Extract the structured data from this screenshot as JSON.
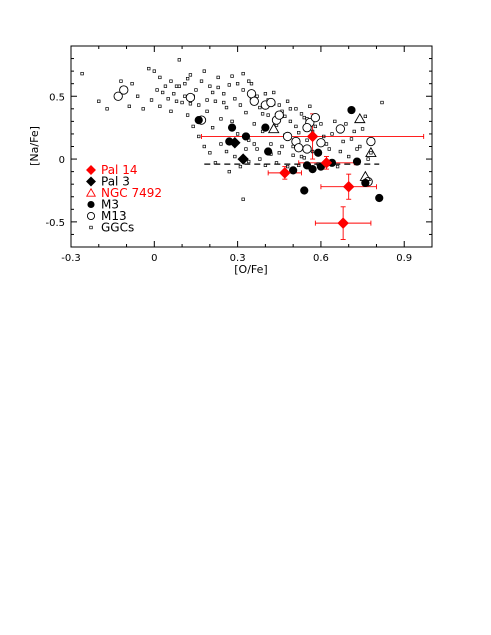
{
  "chart_data": {
    "type": "scatter",
    "xlabel": "[O/Fe]",
    "ylabel": "[Na/Fe]",
    "xlim": [
      -0.3,
      1.0
    ],
    "ylim": [
      -0.7,
      0.9
    ],
    "x_ticks": [
      "-0.3",
      "0",
      "0.3",
      "0.6",
      "0.9"
    ],
    "y_ticks": [
      "-0.5",
      "0",
      "0.5"
    ],
    "legend": [
      {
        "label": "Pal 14",
        "color": "#ff0000"
      },
      {
        "label": "Pal 3",
        "color": "#000000"
      },
      {
        "label": "NGC 7492",
        "color": "#ff0000"
      },
      {
        "label": "M3",
        "color": "#000000"
      },
      {
        "label": "M13",
        "color": "#000000"
      },
      {
        "label": "GGCs",
        "color": "#000000"
      }
    ],
    "legend_position": "left",
    "series": [
      {
        "name": "Pal 14",
        "marker": "diamond-filled",
        "color": "#ff0000",
        "points": [
          {
            "x": 0.57,
            "y": 0.18,
            "xerr": 0.4,
            "yerr": 0.18
          },
          {
            "x": 0.62,
            "y": -0.03,
            "xerr": 0.1,
            "yerr": 0.05
          },
          {
            "x": 0.47,
            "y": -0.11,
            "xerr": 0.06,
            "yerr": 0.05
          },
          {
            "x": 0.7,
            "y": -0.22,
            "xerr": 0.1,
            "yerr": 0.1
          },
          {
            "x": 0.68,
            "y": -0.51,
            "xerr": 0.1,
            "yerr": 0.13
          }
        ]
      },
      {
        "name": "Pal 3",
        "marker": "diamond-filled",
        "color": "#000000",
        "points": [
          {
            "x": 0.29,
            "y": 0.13
          },
          {
            "x": 0.32,
            "y": 0.0
          }
        ]
      },
      {
        "name": "NGC 7492",
        "marker": "triangle-open",
        "color": "#ff0000",
        "points": []
      },
      {
        "name": "NGC 7492 (field)",
        "marker": "triangle-open",
        "color": "#000000",
        "points": [
          {
            "x": 0.43,
            "y": 0.24
          },
          {
            "x": 0.76,
            "y": -0.14
          },
          {
            "x": 0.74,
            "y": 0.32
          },
          {
            "x": 0.78,
            "y": 0.05
          }
        ]
      },
      {
        "name": "M3",
        "marker": "circle-filled",
        "color": "#000000",
        "points": [
          {
            "x": 0.16,
            "y": 0.31
          },
          {
            "x": 0.28,
            "y": 0.25
          },
          {
            "x": 0.27,
            "y": 0.14
          },
          {
            "x": 0.33,
            "y": 0.18
          },
          {
            "x": 0.41,
            "y": 0.06
          },
          {
            "x": 0.4,
            "y": 0.25
          },
          {
            "x": 0.5,
            "y": -0.09
          },
          {
            "x": 0.55,
            "y": -0.05
          },
          {
            "x": 0.57,
            "y": -0.08
          },
          {
            "x": 0.59,
            "y": 0.05
          },
          {
            "x": 0.64,
            "y": -0.03
          },
          {
            "x": 0.71,
            "y": 0.39
          },
          {
            "x": 0.73,
            "y": -0.02
          },
          {
            "x": 0.76,
            "y": -0.19
          },
          {
            "x": 0.81,
            "y": -0.31
          },
          {
            "x": 0.54,
            "y": -0.25
          },
          {
            "x": 0.6,
            "y": -0.06
          }
        ]
      },
      {
        "name": "M13",
        "marker": "circle-open",
        "color": "#000000",
        "points": [
          {
            "x": -0.13,
            "y": 0.5
          },
          {
            "x": -0.11,
            "y": 0.55
          },
          {
            "x": 0.13,
            "y": 0.49
          },
          {
            "x": 0.17,
            "y": 0.31
          },
          {
            "x": 0.35,
            "y": 0.52
          },
          {
            "x": 0.36,
            "y": 0.46
          },
          {
            "x": 0.4,
            "y": 0.43
          },
          {
            "x": 0.42,
            "y": 0.45
          },
          {
            "x": 0.44,
            "y": 0.31
          },
          {
            "x": 0.45,
            "y": 0.35
          },
          {
            "x": 0.48,
            "y": 0.18
          },
          {
            "x": 0.51,
            "y": 0.14
          },
          {
            "x": 0.52,
            "y": 0.09
          },
          {
            "x": 0.55,
            "y": 0.08
          },
          {
            "x": 0.56,
            "y": 0.29
          },
          {
            "x": 0.58,
            "y": 0.33
          },
          {
            "x": 0.6,
            "y": 0.13
          },
          {
            "x": 0.67,
            "y": 0.24
          },
          {
            "x": 0.78,
            "y": 0.14
          },
          {
            "x": 0.77,
            "y": -0.18
          },
          {
            "x": 0.55,
            "y": 0.25
          }
        ]
      },
      {
        "name": "GGCs",
        "marker": "dot",
        "color": "#000000",
        "points": [
          {
            "x": -0.26,
            "y": 0.68
          },
          {
            "x": -0.2,
            "y": 0.46
          },
          {
            "x": -0.17,
            "y": 0.4
          },
          {
            "x": -0.12,
            "y": 0.62
          },
          {
            "x": -0.09,
            "y": 0.42
          },
          {
            "x": -0.06,
            "y": 0.5
          },
          {
            "x": -0.04,
            "y": 0.4
          },
          {
            "x": -0.02,
            "y": 0.72
          },
          {
            "x": 0.0,
            "y": 0.7
          },
          {
            "x": 0.02,
            "y": 0.65
          },
          {
            "x": 0.03,
            "y": 0.53
          },
          {
            "x": 0.05,
            "y": 0.48
          },
          {
            "x": 0.06,
            "y": 0.38
          },
          {
            "x": 0.08,
            "y": 0.58
          },
          {
            "x": 0.09,
            "y": 0.79
          },
          {
            "x": 0.1,
            "y": 0.45
          },
          {
            "x": 0.11,
            "y": 0.6
          },
          {
            "x": 0.12,
            "y": 0.35
          },
          {
            "x": 0.13,
            "y": 0.67
          },
          {
            "x": 0.14,
            "y": 0.5
          },
          {
            "x": 0.15,
            "y": 0.55
          },
          {
            "x": 0.16,
            "y": 0.43
          },
          {
            "x": 0.17,
            "y": 0.62
          },
          {
            "x": 0.18,
            "y": 0.7
          },
          {
            "x": 0.19,
            "y": 0.38
          },
          {
            "x": 0.2,
            "y": 0.58
          },
          {
            "x": 0.21,
            "y": 0.25
          },
          {
            "x": 0.22,
            "y": 0.46
          },
          {
            "x": 0.23,
            "y": 0.65
          },
          {
            "x": 0.24,
            "y": 0.32
          },
          {
            "x": 0.25,
            "y": 0.52
          },
          {
            "x": 0.26,
            "y": 0.41
          },
          {
            "x": 0.27,
            "y": 0.59
          },
          {
            "x": 0.28,
            "y": 0.3
          },
          {
            "x": 0.29,
            "y": 0.48
          },
          {
            "x": 0.3,
            "y": 0.2
          },
          {
            "x": 0.31,
            "y": 0.43
          },
          {
            "x": 0.32,
            "y": 0.55
          },
          {
            "x": 0.33,
            "y": 0.37
          },
          {
            "x": 0.34,
            "y": 0.15
          },
          {
            "x": 0.35,
            "y": 0.48
          },
          {
            "x": 0.36,
            "y": 0.28
          },
          {
            "x": 0.37,
            "y": 0.08
          },
          {
            "x": 0.38,
            "y": 0.41
          },
          {
            "x": 0.39,
            "y": 0.22
          },
          {
            "x": 0.4,
            "y": 0.52
          },
          {
            "x": 0.41,
            "y": 0.35
          },
          {
            "x": 0.42,
            "y": 0.12
          },
          {
            "x": 0.43,
            "y": 0.44
          },
          {
            "x": 0.44,
            "y": 0.27
          },
          {
            "x": 0.45,
            "y": 0.05
          },
          {
            "x": 0.46,
            "y": 0.38
          },
          {
            "x": 0.47,
            "y": 0.19
          },
          {
            "x": 0.48,
            "y": 0.46
          },
          {
            "x": 0.49,
            "y": 0.3
          },
          {
            "x": 0.5,
            "y": 0.1
          },
          {
            "x": 0.51,
            "y": 0.4
          },
          {
            "x": 0.52,
            "y": 0.21
          },
          {
            "x": 0.53,
            "y": 0.02
          },
          {
            "x": 0.54,
            "y": 0.33
          },
          {
            "x": 0.55,
            "y": 0.15
          },
          {
            "x": 0.56,
            "y": 0.42
          },
          {
            "x": 0.57,
            "y": 0.06
          },
          {
            "x": 0.58,
            "y": 0.26
          },
          {
            "x": 0.59,
            "y": -0.04
          },
          {
            "x": 0.61,
            "y": 0.18
          },
          {
            "x": 0.63,
            "y": 0.08
          },
          {
            "x": 0.65,
            "y": 0.3
          },
          {
            "x": 0.66,
            "y": -0.06
          },
          {
            "x": 0.68,
            "y": 0.14
          },
          {
            "x": 0.7,
            "y": 0.02
          },
          {
            "x": 0.72,
            "y": 0.22
          },
          {
            "x": 0.74,
            "y": 0.1
          },
          {
            "x": 0.76,
            "y": 0.34
          },
          {
            "x": 0.78,
            "y": 0.05
          },
          {
            "x": 0.82,
            "y": 0.45
          },
          {
            "x": 0.02,
            "y": 0.42
          },
          {
            "x": 0.07,
            "y": 0.52
          },
          {
            "x": 0.09,
            "y": 0.58
          },
          {
            "x": 0.16,
            "y": 0.18
          },
          {
            "x": 0.18,
            "y": 0.1
          },
          {
            "x": 0.2,
            "y": 0.05
          },
          {
            "x": 0.22,
            "y": -0.03
          },
          {
            "x": 0.24,
            "y": 0.12
          },
          {
            "x": 0.26,
            "y": 0.06
          },
          {
            "x": 0.27,
            "y": -0.1
          },
          {
            "x": 0.29,
            "y": 0.02
          },
          {
            "x": 0.31,
            "y": -0.06
          },
          {
            "x": 0.33,
            "y": 0.08
          },
          {
            "x": 0.34,
            "y": -0.02
          },
          {
            "x": 0.36,
            "y": 0.12
          },
          {
            "x": 0.38,
            "y": 0.0
          },
          {
            "x": 0.4,
            "y": -0.05
          },
          {
            "x": 0.42,
            "y": 0.04
          },
          {
            "x": 0.44,
            "y": -0.03
          },
          {
            "x": 0.46,
            "y": 0.1
          },
          {
            "x": 0.48,
            "y": -0.06
          },
          {
            "x": 0.5,
            "y": 0.03
          },
          {
            "x": 0.52,
            "y": -0.05
          },
          {
            "x": 0.54,
            "y": 0.01
          },
          {
            "x": 0.56,
            "y": -0.07
          },
          {
            "x": 0.32,
            "y": -0.32
          },
          {
            "x": 0.19,
            "y": 0.47
          },
          {
            "x": 0.21,
            "y": 0.53
          },
          {
            "x": 0.23,
            "y": 0.57
          },
          {
            "x": 0.25,
            "y": 0.45
          },
          {
            "x": 0.13,
            "y": 0.44
          },
          {
            "x": 0.11,
            "y": 0.5
          },
          {
            "x": 0.04,
            "y": 0.58
          },
          {
            "x": -0.01,
            "y": 0.47
          },
          {
            "x": 0.35,
            "y": 0.6
          },
          {
            "x": 0.37,
            "y": 0.5
          },
          {
            "x": 0.39,
            "y": 0.36
          },
          {
            "x": 0.41,
            "y": 0.47
          },
          {
            "x": 0.43,
            "y": 0.53
          },
          {
            "x": 0.45,
            "y": 0.43
          },
          {
            "x": 0.47,
            "y": 0.34
          },
          {
            "x": 0.49,
            "y": 0.4
          },
          {
            "x": 0.51,
            "y": 0.26
          },
          {
            "x": 0.53,
            "y": 0.36
          },
          {
            "x": 0.55,
            "y": 0.32
          },
          {
            "x": 0.57,
            "y": 0.22
          },
          {
            "x": 0.6,
            "y": 0.28
          },
          {
            "x": 0.62,
            "y": 0.12
          },
          {
            "x": 0.64,
            "y": 0.2
          },
          {
            "x": 0.67,
            "y": 0.06
          },
          {
            "x": 0.69,
            "y": 0.28
          },
          {
            "x": 0.71,
            "y": 0.16
          },
          {
            "x": 0.73,
            "y": 0.08
          },
          {
            "x": 0.75,
            "y": 0.24
          },
          {
            "x": 0.77,
            "y": 0.0
          },
          {
            "x": 0.14,
            "y": 0.26
          },
          {
            "x": 0.12,
            "y": 0.64
          },
          {
            "x": 0.08,
            "y": 0.46
          },
          {
            "x": 0.06,
            "y": 0.62
          },
          {
            "x": 0.01,
            "y": 0.55
          },
          {
            "x": -0.08,
            "y": 0.6
          },
          {
            "x": 0.28,
            "y": 0.66
          },
          {
            "x": 0.3,
            "y": 0.6
          },
          {
            "x": 0.32,
            "y": 0.68
          },
          {
            "x": 0.34,
            "y": 0.62
          }
        ]
      }
    ],
    "reference_lines": [
      {
        "type": "dashed",
        "x_from": 0.18,
        "x_to": 0.81,
        "y": -0.04
      }
    ]
  }
}
